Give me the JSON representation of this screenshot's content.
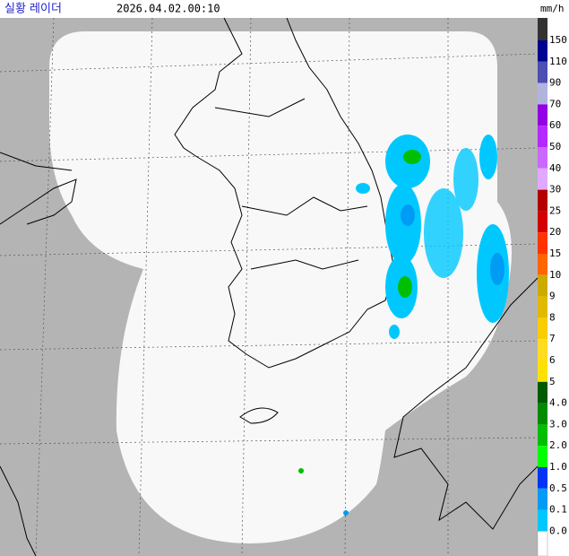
{
  "header": {
    "title": "실황 레이더",
    "time": "2026.04.02.00:10",
    "unit": "mm/h"
  },
  "legend": {
    "items": [
      {
        "label": "150",
        "color": "#000390"
      },
      {
        "label": "110",
        "color": "#4c4eb1"
      },
      {
        "label": "90",
        "color": "#b3b4de"
      },
      {
        "label": "70",
        "color": "#9300e4"
      },
      {
        "label": "60",
        "color": "#b329ff"
      },
      {
        "label": "50",
        "color": "#c969ff"
      },
      {
        "label": "40",
        "color": "#e0a9ff"
      },
      {
        "label": "30",
        "color": "#b40000"
      },
      {
        "label": "25",
        "color": "#d20000"
      },
      {
        "label": "20",
        "color": "#ff3200"
      },
      {
        "label": "15",
        "color": "#ff6600"
      },
      {
        "label": "10",
        "color": "#ccaa00"
      },
      {
        "label": "9",
        "color": "#e0b900"
      },
      {
        "label": "8",
        "color": "#f9cd00"
      },
      {
        "label": "7",
        "color": "#ffdc1f"
      },
      {
        "label": "6",
        "color": "#ffe100"
      },
      {
        "label": "5",
        "color": "#005a00"
      },
      {
        "label": "4.0",
        "color": "#008c00"
      },
      {
        "label": "3.0",
        "color": "#00be00"
      },
      {
        "label": "2.0",
        "color": "#00ff00"
      },
      {
        "label": "1.0",
        "color": "#0033f5"
      },
      {
        "label": "0.5",
        "color": "#009bf5"
      },
      {
        "label": "0.1",
        "color": "#00c8ff"
      },
      {
        "label": "0.0",
        "color": "#ffffff"
      }
    ]
  }
}
